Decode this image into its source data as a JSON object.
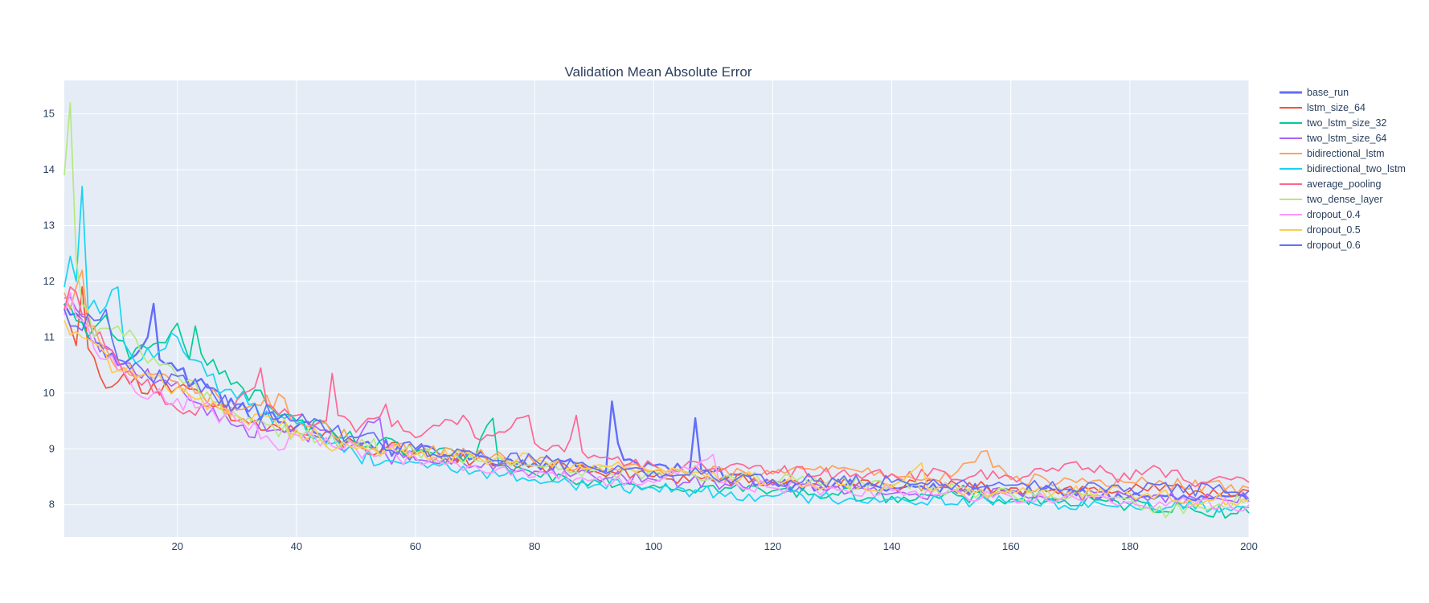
{
  "chart_data": {
    "type": "line",
    "title": "Validation Mean Absolute Error",
    "xlabel": "",
    "ylabel": "",
    "xlim": [
      1,
      200
    ],
    "ylim": [
      7.42,
      15.6
    ],
    "xticks": [
      20,
      40,
      60,
      80,
      100,
      120,
      140,
      160,
      180,
      200
    ],
    "yticks": [
      8,
      9,
      10,
      11,
      12,
      13,
      14,
      15
    ],
    "grid": true,
    "legend_position": "top-right (outside plot)",
    "plot_background": "#e5ecf6",
    "x": {
      "start": 1,
      "end": 200,
      "step": 1
    },
    "series": [
      {
        "name": "base_run",
        "color": "#636efa",
        "highlight": true,
        "keypoints": [
          [
            1,
            11.6
          ],
          [
            2,
            11.4
          ],
          [
            4,
            11.3
          ],
          [
            6,
            10.9
          ],
          [
            10,
            10.5
          ],
          [
            15,
            11.0
          ],
          [
            16,
            11.6
          ],
          [
            17,
            10.6
          ],
          [
            20,
            10.4
          ],
          [
            25,
            10.1
          ],
          [
            30,
            9.7
          ],
          [
            40,
            9.4
          ],
          [
            50,
            9.1
          ],
          [
            60,
            8.95
          ],
          [
            70,
            8.85
          ],
          [
            80,
            8.75
          ],
          [
            90,
            8.7
          ],
          [
            92,
            8.6
          ],
          [
            93,
            9.85
          ],
          [
            94,
            9.1
          ],
          [
            95,
            8.8
          ],
          [
            100,
            8.7
          ],
          [
            105,
            8.6
          ],
          [
            106,
            8.55
          ],
          [
            107,
            9.55
          ],
          [
            108,
            8.6
          ],
          [
            120,
            8.4
          ],
          [
            140,
            8.3
          ],
          [
            160,
            8.25
          ],
          [
            180,
            8.15
          ],
          [
            200,
            8.05
          ]
        ]
      },
      {
        "name": "lstm_size_64",
        "color": "#ef553b",
        "keypoints": [
          [
            1,
            11.5
          ],
          [
            2,
            11.2
          ],
          [
            3,
            10.85
          ],
          [
            4,
            11.9
          ],
          [
            5,
            10.8
          ],
          [
            7,
            10.3
          ],
          [
            10,
            10.2
          ],
          [
            20,
            10.1
          ],
          [
            30,
            9.5
          ],
          [
            40,
            9.3
          ],
          [
            50,
            9.05
          ],
          [
            60,
            8.9
          ],
          [
            70,
            8.8
          ],
          [
            80,
            8.7
          ],
          [
            90,
            8.6
          ],
          [
            100,
            8.5
          ],
          [
            120,
            8.4
          ],
          [
            140,
            8.35
          ],
          [
            160,
            8.3
          ],
          [
            180,
            8.25
          ],
          [
            200,
            8.25
          ]
        ]
      },
      {
        "name": "two_lstm_size_32",
        "color": "#00cc96",
        "keypoints": [
          [
            1,
            11.6
          ],
          [
            3,
            11.3
          ],
          [
            5,
            11.0
          ],
          [
            8,
            11.4
          ],
          [
            12,
            10.6
          ],
          [
            18,
            10.9
          ],
          [
            20,
            11.25
          ],
          [
            21,
            10.9
          ],
          [
            22,
            10.6
          ],
          [
            23,
            11.2
          ],
          [
            24,
            10.7
          ],
          [
            26,
            10.6
          ],
          [
            28,
            10.4
          ],
          [
            30,
            10.2
          ],
          [
            35,
            9.8
          ],
          [
            40,
            9.5
          ],
          [
            50,
            9.1
          ],
          [
            60,
            8.95
          ],
          [
            70,
            8.85
          ],
          [
            73,
            9.55
          ],
          [
            74,
            8.7
          ],
          [
            80,
            8.55
          ],
          [
            90,
            8.45
          ],
          [
            100,
            8.35
          ],
          [
            120,
            8.25
          ],
          [
            140,
            8.15
          ],
          [
            160,
            8.1
          ],
          [
            180,
            8.0
          ],
          [
            200,
            7.85
          ]
        ]
      },
      {
        "name": "two_lstm_size_64",
        "color": "#ab63fa",
        "keypoints": [
          [
            1,
            11.7
          ],
          [
            3,
            11.5
          ],
          [
            6,
            11.0
          ],
          [
            10,
            10.5
          ],
          [
            20,
            10.2
          ],
          [
            25,
            9.6
          ],
          [
            30,
            9.4
          ],
          [
            40,
            9.3
          ],
          [
            50,
            9.1
          ],
          [
            54,
            9.55
          ],
          [
            55,
            8.9
          ],
          [
            60,
            8.8
          ],
          [
            70,
            8.7
          ],
          [
            80,
            8.6
          ],
          [
            90,
            8.5
          ],
          [
            100,
            8.45
          ],
          [
            120,
            8.35
          ],
          [
            140,
            8.2
          ],
          [
            160,
            8.2
          ],
          [
            180,
            8.15
          ],
          [
            200,
            8.1
          ]
        ]
      },
      {
        "name": "bidirectional_lstm",
        "color": "#ffa15a",
        "keypoints": [
          [
            1,
            11.8
          ],
          [
            2,
            11.5
          ],
          [
            3,
            11.9
          ],
          [
            4,
            12.2
          ],
          [
            5,
            11.2
          ],
          [
            8,
            10.8
          ],
          [
            10,
            10.4
          ],
          [
            20,
            10.2
          ],
          [
            30,
            9.7
          ],
          [
            38,
            9.9
          ],
          [
            40,
            9.5
          ],
          [
            50,
            9.1
          ],
          [
            60,
            9.0
          ],
          [
            70,
            8.9
          ],
          [
            80,
            8.75
          ],
          [
            90,
            8.65
          ],
          [
            100,
            8.6
          ],
          [
            120,
            8.55
          ],
          [
            130,
            8.7
          ],
          [
            140,
            8.55
          ],
          [
            150,
            8.5
          ],
          [
            155,
            8.95
          ],
          [
            160,
            8.45
          ],
          [
            180,
            8.4
          ],
          [
            200,
            8.3
          ]
        ]
      },
      {
        "name": "bidirectional_two_lstm",
        "color": "#19d3f3",
        "keypoints": [
          [
            1,
            11.9
          ],
          [
            2,
            12.45
          ],
          [
            3,
            12.0
          ],
          [
            4,
            13.7
          ],
          [
            5,
            11.5
          ],
          [
            8,
            11.55
          ],
          [
            10,
            11.9
          ],
          [
            11,
            10.9
          ],
          [
            14,
            10.6
          ],
          [
            18,
            10.8
          ],
          [
            20,
            11.0
          ],
          [
            22,
            10.6
          ],
          [
            25,
            10.3
          ],
          [
            30,
            9.9
          ],
          [
            40,
            9.45
          ],
          [
            50,
            8.9
          ],
          [
            60,
            8.75
          ],
          [
            70,
            8.6
          ],
          [
            80,
            8.45
          ],
          [
            90,
            8.35
          ],
          [
            100,
            8.3
          ],
          [
            120,
            8.15
          ],
          [
            140,
            8.1
          ],
          [
            160,
            8.05
          ],
          [
            180,
            8.0
          ],
          [
            200,
            7.95
          ]
        ]
      },
      {
        "name": "average_pooling",
        "color": "#ff6692",
        "keypoints": [
          [
            1,
            11.5
          ],
          [
            2,
            11.9
          ],
          [
            4,
            11.4
          ],
          [
            8,
            10.8
          ],
          [
            12,
            10.4
          ],
          [
            16,
            10.0
          ],
          [
            20,
            9.7
          ],
          [
            23,
            9.6
          ],
          [
            28,
            9.7
          ],
          [
            33,
            10.1
          ],
          [
            34,
            10.45
          ],
          [
            35,
            9.8
          ],
          [
            40,
            9.6
          ],
          [
            45,
            9.5
          ],
          [
            46,
            10.35
          ],
          [
            47,
            9.6
          ],
          [
            50,
            9.3
          ],
          [
            55,
            9.8
          ],
          [
            56,
            9.4
          ],
          [
            60,
            9.2
          ],
          [
            68,
            9.6
          ],
          [
            70,
            9.2
          ],
          [
            75,
            9.3
          ],
          [
            79,
            9.6
          ],
          [
            80,
            9.1
          ],
          [
            85,
            8.95
          ],
          [
            87,
            9.6
          ],
          [
            88,
            8.95
          ],
          [
            92,
            8.85
          ],
          [
            95,
            8.7
          ],
          [
            100,
            8.7
          ],
          [
            110,
            8.65
          ],
          [
            120,
            8.6
          ],
          [
            140,
            8.55
          ],
          [
            160,
            8.5
          ],
          [
            170,
            8.75
          ],
          [
            180,
            8.45
          ],
          [
            184,
            8.7
          ],
          [
            190,
            8.4
          ],
          [
            200,
            8.4
          ]
        ]
      },
      {
        "name": "two_dense_layer",
        "color": "#b6e880",
        "keypoints": [
          [
            1,
            13.9
          ],
          [
            2,
            15.2
          ],
          [
            3,
            12.4
          ],
          [
            4,
            11.6
          ],
          [
            6,
            11.0
          ],
          [
            10,
            11.2
          ],
          [
            14,
            10.7
          ],
          [
            20,
            10.3
          ],
          [
            30,
            9.6
          ],
          [
            40,
            9.3
          ],
          [
            50,
            9.05
          ],
          [
            60,
            8.95
          ],
          [
            70,
            8.8
          ],
          [
            80,
            8.7
          ],
          [
            90,
            8.6
          ],
          [
            100,
            8.55
          ],
          [
            120,
            8.45
          ],
          [
            140,
            8.35
          ],
          [
            160,
            8.2
          ],
          [
            180,
            8.1
          ],
          [
            184,
            7.85
          ],
          [
            200,
            8.1
          ]
        ]
      },
      {
        "name": "dropout_0.4",
        "color": "#ff97ff",
        "keypoints": [
          [
            1,
            11.4
          ],
          [
            2,
            11.8
          ],
          [
            4,
            11.3
          ],
          [
            8,
            10.6
          ],
          [
            12,
            10.2
          ],
          [
            16,
            10.0
          ],
          [
            20,
            9.9
          ],
          [
            30,
            9.5
          ],
          [
            38,
            9.0
          ],
          [
            40,
            9.25
          ],
          [
            50,
            9.0
          ],
          [
            60,
            8.85
          ],
          [
            70,
            8.7
          ],
          [
            80,
            8.5
          ],
          [
            90,
            8.45
          ],
          [
            100,
            8.4
          ],
          [
            110,
            8.9
          ],
          [
            111,
            8.4
          ],
          [
            120,
            8.3
          ],
          [
            140,
            8.25
          ],
          [
            160,
            8.15
          ],
          [
            180,
            8.05
          ],
          [
            200,
            8.0
          ]
        ]
      },
      {
        "name": "dropout_0.5",
        "color": "#fecb52",
        "keypoints": [
          [
            1,
            11.3
          ],
          [
            3,
            11.1
          ],
          [
            6,
            10.9
          ],
          [
            10,
            10.4
          ],
          [
            20,
            10.1
          ],
          [
            30,
            9.6
          ],
          [
            40,
            9.35
          ],
          [
            50,
            9.0
          ],
          [
            60,
            8.9
          ],
          [
            70,
            8.85
          ],
          [
            80,
            8.8
          ],
          [
            90,
            8.7
          ],
          [
            100,
            8.6
          ],
          [
            120,
            8.45
          ],
          [
            140,
            8.3
          ],
          [
            145,
            8.75
          ],
          [
            146,
            8.3
          ],
          [
            160,
            8.25
          ],
          [
            180,
            8.2
          ],
          [
            200,
            8.05
          ]
        ]
      },
      {
        "name": "dropout_0.6",
        "color": "#636efa",
        "keypoints": [
          [
            1,
            11.5
          ],
          [
            3,
            11.2
          ],
          [
            6,
            11.3
          ],
          [
            8,
            11.5
          ],
          [
            10,
            10.6
          ],
          [
            15,
            10.3
          ],
          [
            20,
            10.3
          ],
          [
            30,
            9.8
          ],
          [
            40,
            9.5
          ],
          [
            50,
            9.2
          ],
          [
            60,
            9.0
          ],
          [
            70,
            8.9
          ],
          [
            80,
            8.8
          ],
          [
            90,
            8.65
          ],
          [
            100,
            8.6
          ],
          [
            120,
            8.45
          ],
          [
            140,
            8.4
          ],
          [
            160,
            8.35
          ],
          [
            180,
            8.3
          ],
          [
            200,
            8.25
          ]
        ]
      }
    ]
  }
}
